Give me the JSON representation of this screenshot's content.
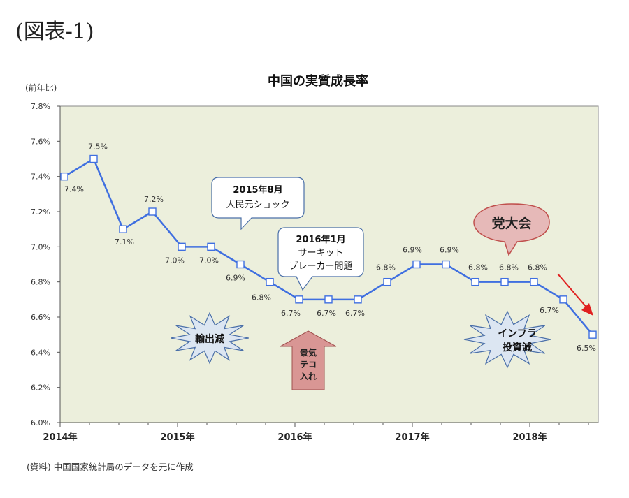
{
  "figure_label": "(図表-1)",
  "source_note": "(資料) 中国国家統計局のデータを元に作成",
  "chart_data": {
    "type": "line",
    "title": "中国の実質成長率",
    "ylabel": "(前年比)",
    "xlabel": "",
    "ylim": [
      6.0,
      7.8
    ],
    "yticks": [
      6.0,
      6.2,
      6.4,
      6.6,
      6.8,
      7.0,
      7.2,
      7.4,
      7.6,
      7.8
    ],
    "ytick_labels": [
      "6.0%",
      "6.2%",
      "6.4%",
      "6.6%",
      "6.8%",
      "7.0%",
      "7.2%",
      "7.4%",
      "7.6%",
      "7.8%"
    ],
    "year_labels": [
      "2014年",
      "2015年",
      "2016年",
      "2017年",
      "2018年"
    ],
    "plot_background": "#ecefdc",
    "line_color": "#3f6fe0",
    "series": [
      {
        "quarters": [
          "2014Q1",
          "2014Q2",
          "2014Q3",
          "2014Q4",
          "2015Q1",
          "2015Q2",
          "2015Q3",
          "2015Q4",
          "2016Q1",
          "2016Q2",
          "2016Q3",
          "2016Q4",
          "2017Q1",
          "2017Q2",
          "2017Q3",
          "2017Q4",
          "2018Q1",
          "2018Q2",
          "2018Q3"
        ],
        "values": [
          7.4,
          7.5,
          7.1,
          7.2,
          7.0,
          7.0,
          6.9,
          6.8,
          6.7,
          6.7,
          6.7,
          6.8,
          6.9,
          6.9,
          6.8,
          6.8,
          6.8,
          6.7,
          6.5
        ],
        "labels": [
          "7.4%",
          "7.5%",
          "7.1%",
          "7.2%",
          "7.0%",
          "7.0%",
          "6.9%",
          "6.8%",
          "6.7%",
          "6.7%",
          "6.7%",
          "6.8%",
          "6.9%",
          "6.9%",
          "6.8%",
          "6.8%",
          "6.8%",
          "6.7%",
          "6.5%"
        ]
      }
    ],
    "annotations": {
      "callout_2015": [
        "2015年8月",
        "人民元ショック"
      ],
      "callout_2016": [
        "2016年1月",
        "サーキット",
        "ブレーカー問題"
      ],
      "burst_exports": "輸出減",
      "arrow_stimulus": [
        "景気",
        "テコ",
        "入れ"
      ],
      "party_congress": "党大会",
      "burst_infra": [
        "インフラ",
        "投資減"
      ]
    }
  }
}
